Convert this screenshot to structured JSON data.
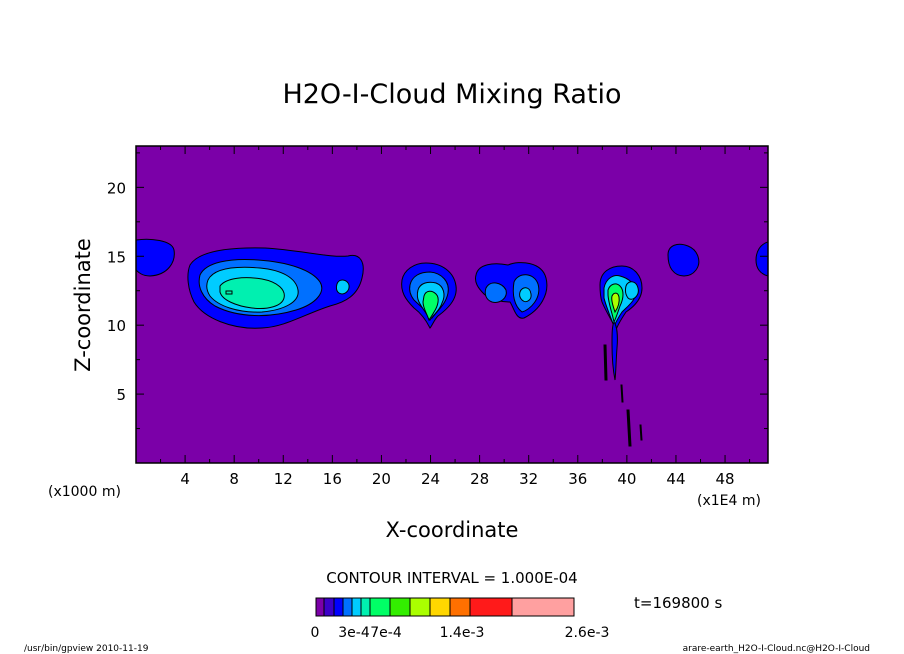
{
  "chart_data": {
    "type": "contour",
    "title": "H2O-I-Cloud Mixing Ratio",
    "xlabel": "X-coordinate",
    "ylabel": "Z-coordinate",
    "x_unit": "(x1E4 m)",
    "y_unit": "(x1000 m)",
    "xlim": [
      0,
      51.5
    ],
    "ylim": [
      0,
      23
    ],
    "x_ticks": [
      4,
      8,
      12,
      16,
      20,
      24,
      28,
      32,
      36,
      40,
      44,
      48
    ],
    "y_ticks": [
      5,
      10,
      15,
      20
    ],
    "contour_interval_text": "CONTOUR INTERVAL = 1.000E-04",
    "time_text": "t=169800 s",
    "colorbar": {
      "colors": [
        "#7b00a8",
        "#3c00c8",
        "#0000ff",
        "#0070ff",
        "#00ccff",
        "#00f0b0",
        "#00ff66",
        "#33ee00",
        "#aaff00",
        "#ffd700",
        "#ff7000",
        "#ff1a1a",
        "#ffa0a0"
      ],
      "labels": [
        {
          "text": "0",
          "value": 0
        },
        {
          "text": "3e-4",
          "value": 0.0003
        },
        {
          "text": "7e-4",
          "value": 0.0007
        },
        {
          "text": "1.4e-3",
          "value": 0.0014
        },
        {
          "text": "2.6e-3",
          "value": 0.0026
        }
      ]
    },
    "background_color": "#7b00a8",
    "cloud_regions": [
      {
        "name": "cloud-left-edge",
        "x_range": [
          0,
          3
        ],
        "z_range": [
          13.7,
          16.0
        ],
        "max_level": 1
      },
      {
        "name": "cloud-main",
        "x_range": [
          4.2,
          18.5
        ],
        "z_range": [
          9.5,
          15.3
        ],
        "max_level": 5
      },
      {
        "name": "cloud-24",
        "x_range": [
          21.7,
          26.3
        ],
        "z_range": [
          10.0,
          14.5
        ],
        "max_level": 6
      },
      {
        "name": "cloud-30",
        "x_range": [
          27.5,
          33.3
        ],
        "z_range": [
          10.8,
          14.8
        ],
        "max_level": 4
      },
      {
        "name": "cloud-39",
        "x_range": [
          37.6,
          41.2
        ],
        "z_range": [
          10.0,
          14.3
        ],
        "max_level": 6
      },
      {
        "name": "cloud-44",
        "x_range": [
          43.5,
          45.8
        ],
        "z_range": [
          13.4,
          15.8
        ],
        "max_level": 1
      },
      {
        "name": "cloud-right-edge",
        "x_range": [
          49.8,
          51.5
        ],
        "z_range": [
          13.6,
          16.0
        ],
        "max_level": 1
      }
    ]
  },
  "footer": {
    "left": "/usr/bin/gpview   2010-11-19",
    "right": "arare-earth_H2O-I-Cloud.nc@H2O-I-Cloud"
  }
}
